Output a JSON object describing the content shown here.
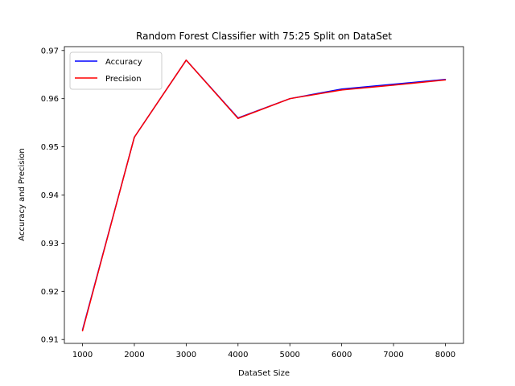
{
  "chart_data": {
    "type": "line",
    "title": "Random Forest Classifier with 75:25 Split on DataSet",
    "xlabel": "DataSet Size",
    "ylabel": "Accuracy and Precision",
    "x": [
      1000,
      2000,
      3000,
      4000,
      5000,
      6000,
      7000,
      8000
    ],
    "xticks": [
      "1000",
      "2000",
      "3000",
      "4000",
      "5000",
      "6000",
      "7000",
      "8000"
    ],
    "yticks": [
      "0.91",
      "0.92",
      "0.93",
      "0.94",
      "0.95",
      "0.96",
      "0.97"
    ],
    "xlim": [
      650,
      8350
    ],
    "ylim": [
      0.9092,
      0.9708
    ],
    "grid": false,
    "legend_position": "upper-left",
    "series": [
      {
        "name": "Accuracy",
        "color": "#0000ff",
        "values": [
          0.912,
          0.952,
          0.968,
          0.956,
          0.96,
          0.962,
          0.963,
          0.964
        ]
      },
      {
        "name": "Precision",
        "color": "#ff0000",
        "values": [
          0.9118,
          0.952,
          0.968,
          0.9559,
          0.96,
          0.9618,
          0.9628,
          0.9639
        ]
      }
    ]
  }
}
